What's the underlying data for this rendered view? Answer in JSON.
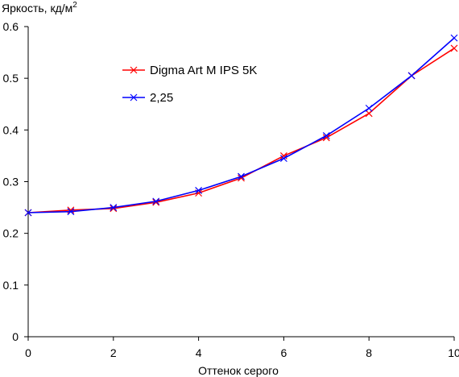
{
  "chart_data": {
    "type": "line",
    "title": "",
    "ylabel": "Яркость, кд/м",
    "ylabel_sup": "2",
    "xlabel": "Оттенок серого",
    "xlim": [
      0,
      10
    ],
    "ylim": [
      0,
      0.6
    ],
    "x_ticks": [
      "0",
      "2",
      "4",
      "6",
      "8",
      "10"
    ],
    "y_ticks": [
      "0",
      "0.1",
      "0.2",
      "0.3",
      "0.4",
      "0.5",
      "0.6"
    ],
    "x": [
      0,
      1,
      2,
      3,
      4,
      5,
      6,
      7,
      8,
      9,
      10
    ],
    "grid": false,
    "legend_position": "top-left",
    "series": [
      {
        "name": "Digma Art M IPS 5K",
        "color": "#ff0000",
        "marker": "x",
        "values": [
          0.24,
          0.245,
          0.248,
          0.26,
          0.278,
          0.307,
          0.35,
          0.385,
          0.432,
          0.505,
          0.558
        ]
      },
      {
        "name": "2,25",
        "color": "#0000ff",
        "marker": "x",
        "values": [
          0.24,
          0.242,
          0.25,
          0.262,
          0.283,
          0.31,
          0.345,
          0.389,
          0.442,
          0.505,
          0.578
        ]
      }
    ]
  }
}
